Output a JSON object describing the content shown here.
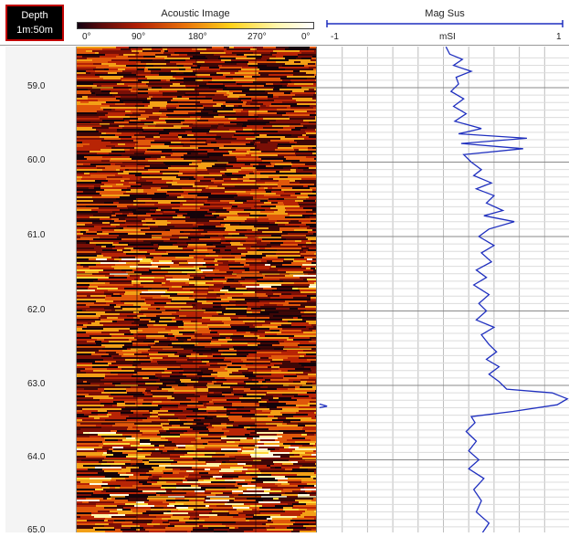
{
  "depth_header": {
    "title": "Depth",
    "scale": "1m:50m"
  },
  "acoustic_image": {
    "title": "Acoustic Image",
    "scale_labels": [
      "0°",
      "90°",
      "180°",
      "270°",
      "0°"
    ]
  },
  "mag_sus": {
    "title": "Mag Sus",
    "min_label": "-1",
    "max_label": "1",
    "unit": "mSI",
    "line_color": "#1f2fbf",
    "profile": [
      [
        58.45,
        0.02
      ],
      [
        58.55,
        0.05
      ],
      [
        58.62,
        0.15
      ],
      [
        58.7,
        0.08
      ],
      [
        58.78,
        0.22
      ],
      [
        58.86,
        0.1
      ],
      [
        58.95,
        0.12
      ],
      [
        59.05,
        0.06
      ],
      [
        59.15,
        0.16
      ],
      [
        59.25,
        0.08
      ],
      [
        59.35,
        0.18
      ],
      [
        59.45,
        0.09
      ],
      [
        59.55,
        0.3
      ],
      [
        59.62,
        0.12
      ],
      [
        59.68,
        0.66
      ],
      [
        59.75,
        0.14
      ],
      [
        59.82,
        0.63
      ],
      [
        59.9,
        0.16
      ],
      [
        60.0,
        0.22
      ],
      [
        60.1,
        0.3
      ],
      [
        60.18,
        0.24
      ],
      [
        60.28,
        0.38
      ],
      [
        60.36,
        0.26
      ],
      [
        60.45,
        0.4
      ],
      [
        60.55,
        0.34
      ],
      [
        60.65,
        0.47
      ],
      [
        60.72,
        0.32
      ],
      [
        60.8,
        0.56
      ],
      [
        60.9,
        0.36
      ],
      [
        61.0,
        0.28
      ],
      [
        61.12,
        0.4
      ],
      [
        61.22,
        0.3
      ],
      [
        61.34,
        0.38
      ],
      [
        61.45,
        0.26
      ],
      [
        61.55,
        0.34
      ],
      [
        61.65,
        0.24
      ],
      [
        61.78,
        0.36
      ],
      [
        61.9,
        0.28
      ],
      [
        62.0,
        0.34
      ],
      [
        62.12,
        0.26
      ],
      [
        62.22,
        0.4
      ],
      [
        62.32,
        0.3
      ],
      [
        62.45,
        0.36
      ],
      [
        62.55,
        0.42
      ],
      [
        62.65,
        0.34
      ],
      [
        62.75,
        0.44
      ],
      [
        62.85,
        0.36
      ],
      [
        62.95,
        0.44
      ],
      [
        63.05,
        0.5
      ],
      [
        63.1,
        0.86
      ],
      [
        63.18,
        0.98
      ],
      [
        63.26,
        0.9
      ],
      [
        63.35,
        0.55
      ],
      [
        63.42,
        0.22
      ],
      [
        63.5,
        0.25
      ],
      [
        63.62,
        0.18
      ],
      [
        63.75,
        0.26
      ],
      [
        63.88,
        0.2
      ],
      [
        64.0,
        0.28
      ],
      [
        64.12,
        0.2
      ],
      [
        64.25,
        0.32
      ],
      [
        64.4,
        0.24
      ],
      [
        64.55,
        0.3
      ],
      [
        64.7,
        0.26
      ],
      [
        64.85,
        0.36
      ],
      [
        65.0,
        0.3
      ]
    ],
    "spike": [
      [
        63.25,
        -0.98
      ],
      [
        63.28,
        -0.92
      ],
      [
        63.3,
        -0.98
      ]
    ]
  },
  "depth_ticks": [
    "59.0",
    "60.0",
    "61.0",
    "62.0",
    "63.0",
    "64.0",
    "65.0"
  ]
}
